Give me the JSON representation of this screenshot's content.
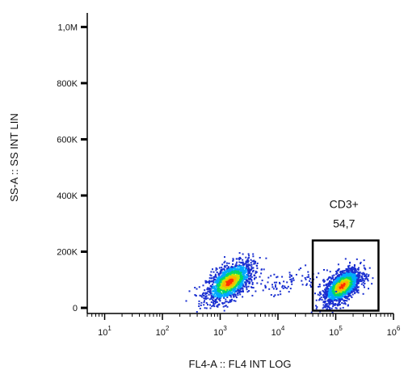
{
  "chart_data": {
    "type": "scatter",
    "title": "",
    "xlabel": "FL4-A :: FL4 INT LOG",
    "ylabel": "SS-A :: SS INT LIN",
    "x_scale": "log",
    "xlim": [
      5,
      1000000
    ],
    "ylim": [
      -20000,
      1050000
    ],
    "x_ticks": [
      {
        "value": 10,
        "base": "10",
        "exp": "1"
      },
      {
        "value": 100,
        "base": "10",
        "exp": "2"
      },
      {
        "value": 1000,
        "base": "10",
        "exp": "3"
      },
      {
        "value": 10000,
        "base": "10",
        "exp": "4"
      },
      {
        "value": 100000,
        "base": "10",
        "exp": "5"
      },
      {
        "value": 1000000,
        "base": "10",
        "exp": "6"
      }
    ],
    "y_ticks": [
      {
        "value": 0,
        "label": "0"
      },
      {
        "value": 200000,
        "label": "200K"
      },
      {
        "value": 400000,
        "label": "400K"
      },
      {
        "value": 600000,
        "label": "600K"
      },
      {
        "value": 800000,
        "label": "800K"
      },
      {
        "value": 1000000,
        "label": "1,0M"
      }
    ],
    "populations": [
      {
        "x_log_center": 3.15,
        "x_log_sd": 0.2,
        "y_center": 95000,
        "y_sd": 35000,
        "events": 1500
      },
      {
        "x_log_center": 5.1,
        "x_log_sd": 0.16,
        "y_center": 80000,
        "y_sd": 30000,
        "events": 1700
      },
      {
        "x_log_center": 4.1,
        "x_log_sd": 0.35,
        "y_center": 90000,
        "y_sd": 25000,
        "events": 90
      }
    ],
    "gate": {
      "name": "CD3+",
      "value": "54,7",
      "x_range": [
        40000,
        550000
      ],
      "y_range": [
        -10000,
        240000
      ]
    },
    "density_colors": [
      "#1a2fd0",
      "#00a8ff",
      "#00d66b",
      "#c8e600",
      "#ffb000",
      "#ff3000"
    ],
    "grid": false
  }
}
